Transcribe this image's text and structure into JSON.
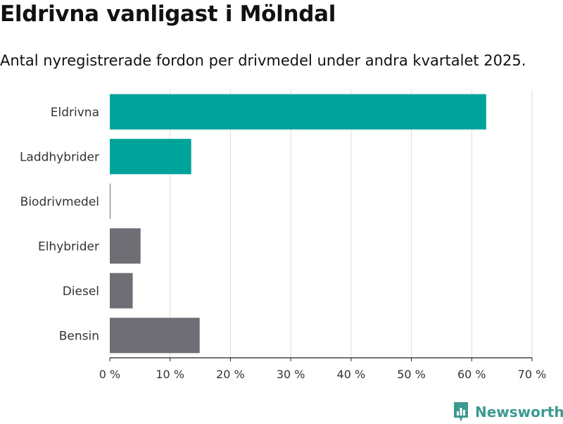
{
  "header": {
    "title": "Eldrivna vanligast i Mölndal",
    "subtitle": "Antal nyregistrerade fordon per drivmedel under andra kvartalet 2025."
  },
  "brand": {
    "name": "Newsworthy",
    "icon": "newsworthy-logo-icon",
    "color": "#3d9a90"
  },
  "colors": {
    "highlight": "#00a39a",
    "default": "#6f6e75",
    "grid": "#dddddd",
    "axis": "#222222"
  },
  "chart_data": {
    "type": "bar",
    "orientation": "horizontal",
    "title": "Eldrivna vanligast i Mölndal",
    "subtitle": "Antal nyregistrerade fordon per drivmedel under andra kvartalet 2025.",
    "categories": [
      "Eldrivna",
      "Laddhybrider",
      "Biodrivmedel",
      "Elhybrider",
      "Diesel",
      "Bensin"
    ],
    "values": [
      62.4,
      13.5,
      0.1,
      5.1,
      3.8,
      14.9
    ],
    "highlighted": [
      true,
      true,
      false,
      false,
      false,
      false
    ],
    "unit": "%",
    "xlim": [
      0,
      70
    ],
    "xticks": [
      "0 %",
      "10 %",
      "20 %",
      "30 %",
      "40 %",
      "50 %",
      "60 %",
      "70 %"
    ],
    "xlabel": "",
    "ylabel": "",
    "grid": true
  }
}
